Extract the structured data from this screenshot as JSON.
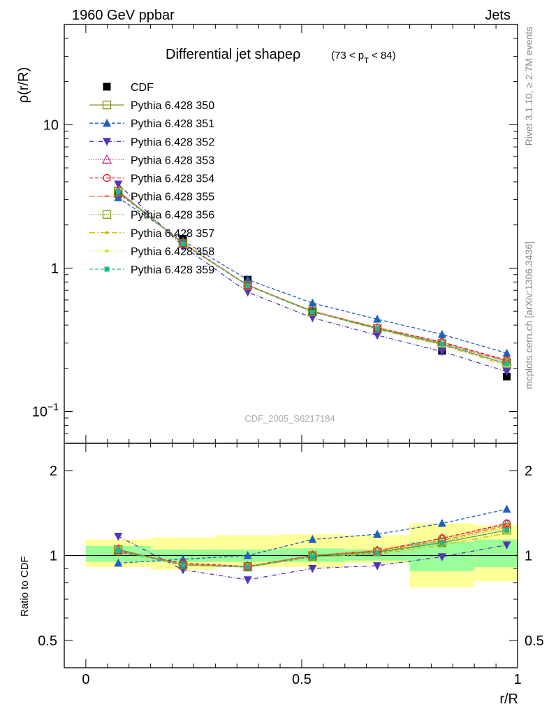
{
  "header": {
    "left": "1960 GeV ppbar",
    "right": "Jets"
  },
  "title_main": "Differential jet shapeρ",
  "title_range": {
    "pre": "(73 < p",
    "sub": "T",
    "post": " < 84)"
  },
  "side_text": {
    "rivet": "Rivet 3.1.10, ≥ 2.7M events",
    "mcplots": "mcplots.cern.ch [arXiv:1306.3436]"
  },
  "watermark": "CDF_2005_S6217184",
  "chart_data": [
    {
      "type": "line",
      "panel": "main",
      "ylabel": "ρ(r/R)",
      "yscale": "log",
      "ylim": [
        0.06,
        50
      ],
      "xlim": [
        -0.05,
        1.0
      ],
      "y_ticks": [
        {
          "v": 0.1,
          "base": "10",
          "exp": "−1"
        },
        {
          "v": 1,
          "base": "1",
          "exp": ""
        },
        {
          "v": 10,
          "base": "10",
          "exp": ""
        }
      ],
      "x": [
        0.075,
        0.225,
        0.375,
        0.525,
        0.675,
        0.825,
        0.975
      ],
      "legend_placement": "top-left",
      "series": [
        {
          "name": "CDF",
          "color": "#000000",
          "marker": "fsquare",
          "dash": "",
          "line": false,
          "values": [
            3.3,
            1.6,
            0.83,
            0.5,
            0.37,
            0.265,
            0.175
          ]
        },
        {
          "name": "Pythia 6.428 350",
          "color": "#8a8a1e",
          "marker": "osquare",
          "dash": "",
          "line": true,
          "values": [
            3.45,
            1.48,
            0.76,
            0.5,
            0.38,
            0.295,
            0.215
          ]
        },
        {
          "name": "Pythia 6.428 351",
          "color": "#1f5fbf",
          "marker": "ftri",
          "dash": "5,3",
          "line": true,
          "values": [
            3.1,
            1.55,
            0.83,
            0.57,
            0.44,
            0.345,
            0.255
          ]
        },
        {
          "name": "Pythia 6.428 352",
          "color": "#5533bb",
          "marker": "fdtri",
          "dash": "6,3,1,3",
          "line": true,
          "values": [
            3.85,
            1.42,
            0.68,
            0.45,
            0.34,
            0.262,
            0.19
          ]
        },
        {
          "name": "Pythia 6.428 353",
          "color": "#bb2288",
          "marker": "otri",
          "dash": "1,2",
          "line": true,
          "values": [
            3.45,
            1.49,
            0.76,
            0.5,
            0.38,
            0.305,
            0.225
          ]
        },
        {
          "name": "Pythia 6.428 354",
          "color": "#e8141e",
          "marker": "ocircle",
          "dash": "5,3",
          "line": true,
          "values": [
            3.35,
            1.5,
            0.76,
            0.5,
            0.385,
            0.305,
            0.228
          ]
        },
        {
          "name": "Pythia 6.428 355",
          "color": "#f07030",
          "marker": "fstar",
          "dash": "8,3",
          "line": true,
          "values": [
            3.4,
            1.49,
            0.76,
            0.5,
            0.385,
            0.3,
            0.224
          ]
        },
        {
          "name": "Pythia 6.428 356",
          "color": "#7a9a1a",
          "marker": "osquare",
          "dash": "1,2",
          "line": true,
          "values": [
            3.4,
            1.48,
            0.755,
            0.495,
            0.38,
            0.298,
            0.22
          ]
        },
        {
          "name": "Pythia 6.428 357",
          "color": "#d4b800",
          "marker": "fdot",
          "dash": "8,3,2,3",
          "line": true,
          "values": [
            3.4,
            1.48,
            0.755,
            0.495,
            0.375,
            0.29,
            0.21
          ]
        },
        {
          "name": "Pythia 6.428 358",
          "color": "#c8dc30",
          "marker": "fdot",
          "dash": "1,2",
          "line": true,
          "values": [
            3.4,
            1.48,
            0.755,
            0.495,
            0.378,
            0.295,
            0.215
          ]
        },
        {
          "name": "Pythia 6.428 359",
          "color": "#1fb88a",
          "marker": "fsquare_s",
          "dash": "5,3",
          "line": true,
          "values": [
            3.4,
            1.48,
            0.755,
            0.495,
            0.378,
            0.295,
            0.215
          ]
        }
      ]
    },
    {
      "type": "line",
      "panel": "ratio",
      "ylabel": "Ratio to CDF",
      "xlabel": "r/R",
      "yscale": "log",
      "ylim": [
        0.4,
        2.5
      ],
      "xlim": [
        -0.05,
        1.0
      ],
      "y_ticks": [
        {
          "v": 0.5,
          "label": "0.5"
        },
        {
          "v": 1,
          "label": "1"
        },
        {
          "v": 2,
          "label": "2"
        }
      ],
      "x_ticks": [
        {
          "v": 0,
          "label": "0"
        },
        {
          "v": 0.5,
          "label": "0.5"
        },
        {
          "v": 1,
          "label": "1"
        }
      ],
      "x": [
        0.075,
        0.225,
        0.375,
        0.525,
        0.675,
        0.825,
        0.975
      ],
      "bands": {
        "x_edges": [
          0.0,
          0.15,
          0.3,
          0.45,
          0.6,
          0.75,
          0.9,
          1.05
        ],
        "inner": [
          [
            0.95,
            1.08
          ],
          [
            0.95,
            1.05
          ],
          [
            0.95,
            1.05
          ],
          [
            0.95,
            1.06
          ],
          [
            0.96,
            1.05
          ],
          [
            0.88,
            1.12
          ],
          [
            0.91,
            1.14
          ]
        ],
        "outer": [
          [
            0.91,
            1.14
          ],
          [
            0.89,
            1.16
          ],
          [
            0.91,
            1.18
          ],
          [
            0.91,
            1.19
          ],
          [
            0.94,
            1.18
          ],
          [
            0.77,
            1.3
          ],
          [
            0.81,
            1.28
          ]
        ]
      },
      "series": [
        {
          "name": "Pythia 6.428 350",
          "values": [
            1.05,
            0.925,
            0.915,
            1.0,
            1.03,
            1.11,
            1.23
          ]
        },
        {
          "name": "Pythia 6.428 351",
          "values": [
            0.94,
            0.97,
            1.0,
            1.14,
            1.19,
            1.3,
            1.46
          ]
        },
        {
          "name": "Pythia 6.428 352",
          "values": [
            1.17,
            0.89,
            0.82,
            0.9,
            0.92,
            0.99,
            1.09
          ]
        },
        {
          "name": "Pythia 6.428 353",
          "values": [
            1.05,
            0.93,
            0.915,
            1.0,
            1.04,
            1.15,
            1.29
          ]
        },
        {
          "name": "Pythia 6.428 354",
          "values": [
            1.03,
            0.94,
            0.915,
            1.0,
            1.04,
            1.15,
            1.3
          ]
        },
        {
          "name": "Pythia 6.428 355",
          "values": [
            1.04,
            0.93,
            0.915,
            1.0,
            1.04,
            1.13,
            1.28
          ]
        },
        {
          "name": "Pythia 6.428 356",
          "values": [
            1.04,
            0.925,
            0.91,
            0.99,
            1.03,
            1.12,
            1.26
          ]
        },
        {
          "name": "Pythia 6.428 357",
          "values": [
            1.04,
            0.925,
            0.91,
            0.99,
            1.01,
            1.09,
            1.2
          ]
        },
        {
          "name": "Pythia 6.428 358",
          "values": [
            1.04,
            0.925,
            0.91,
            0.99,
            1.02,
            1.11,
            1.23
          ]
        },
        {
          "name": "Pythia 6.428 359",
          "values": [
            1.04,
            0.925,
            0.91,
            0.99,
            1.02,
            1.11,
            1.23
          ]
        }
      ]
    }
  ]
}
